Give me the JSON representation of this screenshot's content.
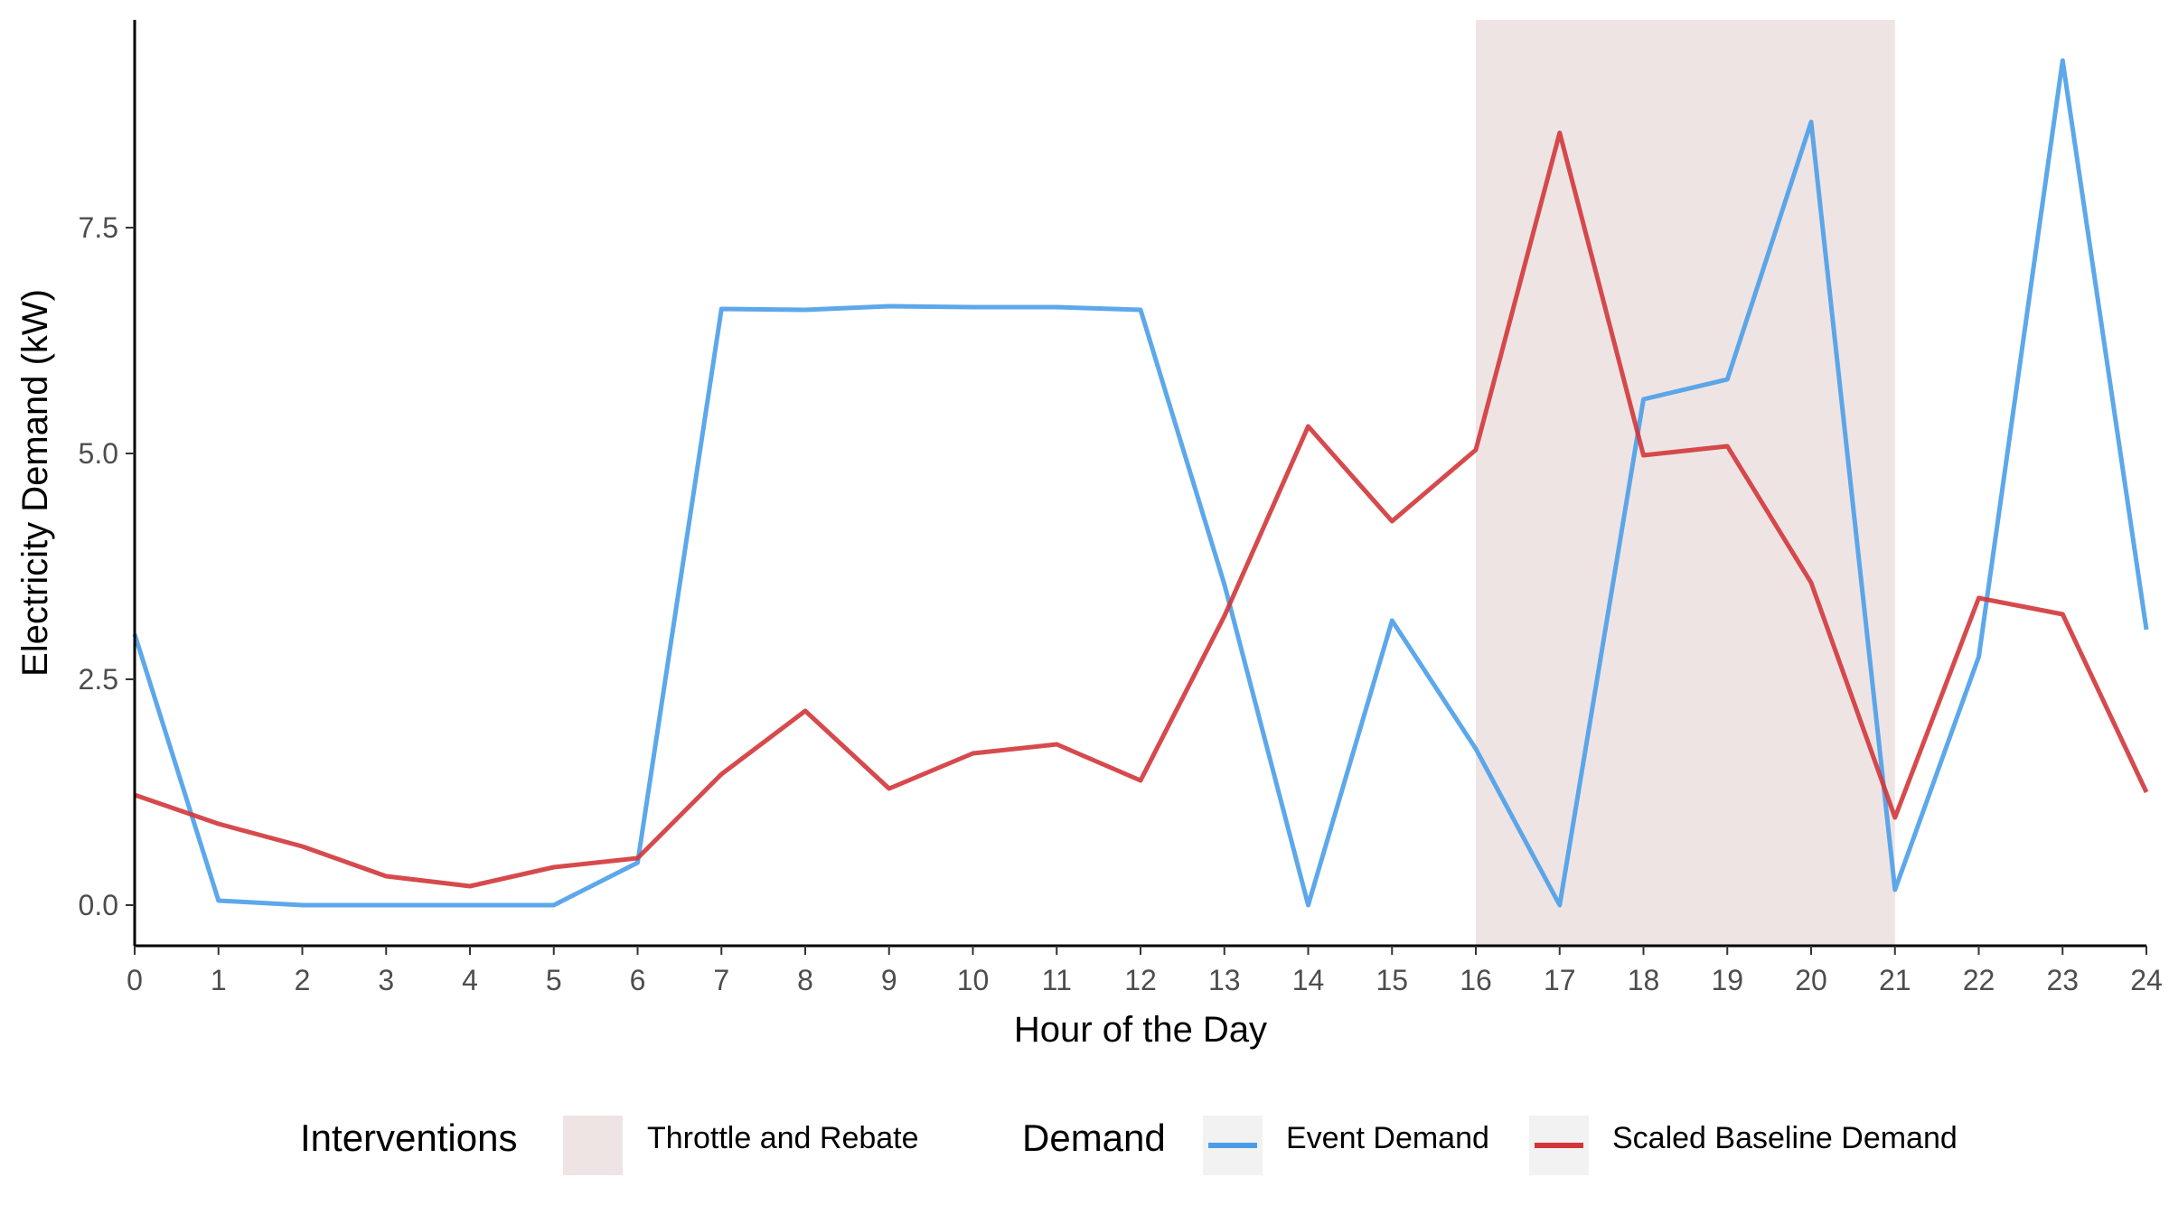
{
  "chart_data": {
    "type": "line",
    "xlabel": "Hour of the Day",
    "ylabel": "Electricity Demand (kW)",
    "xlim": [
      0,
      24
    ],
    "ylim": [
      -0.45,
      9.8
    ],
    "x_ticks": [
      0,
      1,
      2,
      3,
      4,
      5,
      6,
      7,
      8,
      9,
      10,
      11,
      12,
      13,
      14,
      15,
      16,
      17,
      18,
      19,
      20,
      21,
      22,
      23,
      24
    ],
    "y_ticks": [
      0,
      2.5,
      5,
      7.5
    ],
    "y_tick_labels": [
      "0.0",
      "2.5",
      "5.0",
      "7.5"
    ],
    "grid": false,
    "shaded_regions": [
      {
        "name": "Throttle and Rebate",
        "x_start": 16,
        "x_end": 21,
        "color": "#efe4e4"
      }
    ],
    "series": [
      {
        "name": "Event Demand",
        "color": "#4a9ee8",
        "x": [
          0,
          1,
          2,
          3,
          4,
          5,
          6,
          7,
          8,
          9,
          10,
          11,
          12,
          13,
          14,
          15,
          16,
          17,
          18,
          19,
          20,
          21,
          22,
          23,
          24
        ],
        "values": [
          3.0,
          0.05,
          0.0,
          0.0,
          0.0,
          0.0,
          0.47,
          6.6,
          6.59,
          6.63,
          6.62,
          6.62,
          6.59,
          3.55,
          0.0,
          3.15,
          1.73,
          0.0,
          5.6,
          5.82,
          8.67,
          0.17,
          2.75,
          9.35,
          3.05
        ]
      },
      {
        "name": "Scaled Baseline Demand",
        "color": "#d1363a",
        "x": [
          0,
          1,
          2,
          3,
          4,
          5,
          6,
          7,
          8,
          9,
          10,
          11,
          12,
          13,
          14,
          15,
          16,
          17,
          18,
          19,
          20,
          21,
          22,
          23,
          24
        ],
        "values": [
          1.22,
          0.9,
          0.65,
          0.32,
          0.21,
          0.42,
          0.52,
          1.45,
          2.15,
          1.29,
          1.68,
          1.78,
          1.38,
          3.2,
          5.3,
          4.25,
          5.04,
          8.55,
          4.98,
          5.08,
          3.57,
          0.97,
          3.4,
          3.22,
          1.25
        ]
      }
    ],
    "legend": {
      "position": "bottom",
      "groups": [
        {
          "title": "Interventions",
          "items": [
            {
              "label": "Throttle and Rebate",
              "kind": "fill",
              "color": "#efe4e4"
            }
          ]
        },
        {
          "title": "Demand",
          "items": [
            {
              "label": "Event Demand",
              "kind": "line",
              "color": "#4a9ee8"
            },
            {
              "label": "Scaled Baseline Demand",
              "kind": "line",
              "color": "#d1363a"
            }
          ]
        }
      ]
    }
  }
}
